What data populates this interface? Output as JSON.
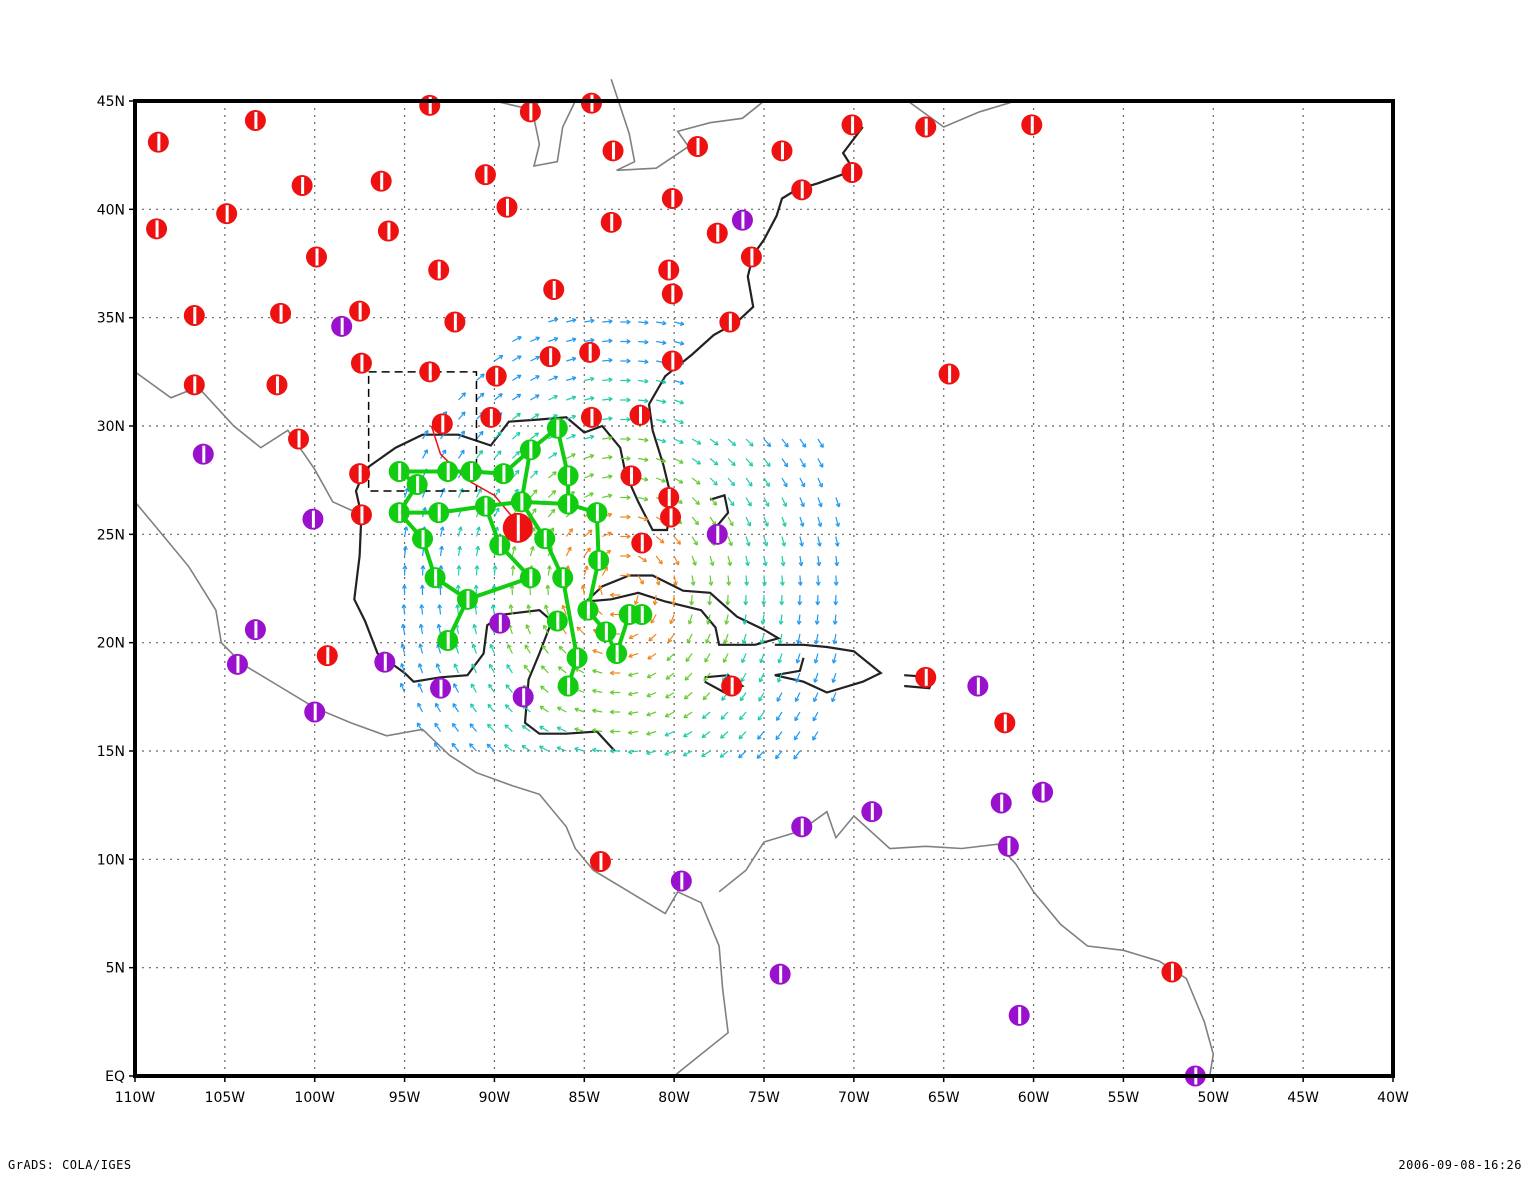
{
  "map": {
    "type": "station-map",
    "lon_range": [
      -110,
      -40
    ],
    "lat_range": [
      0,
      45
    ],
    "grid": "dotted",
    "x_tick_labels": [
      "110W",
      "105W",
      "100W",
      "95W",
      "90W",
      "85W",
      "80W",
      "75W",
      "70W",
      "65W",
      "60W",
      "55W",
      "50W",
      "45W",
      "40W"
    ],
    "y_tick_labels": [
      "EQ",
      "5N",
      "10N",
      "15N",
      "20N",
      "25N",
      "30N",
      "35N",
      "40N",
      "45N"
    ],
    "colors": {
      "station_red": "#ee1111",
      "station_purple": "#9911cc",
      "station_green": "#11cc11",
      "coast": "#808080",
      "coast_dark": "#222222",
      "frame": "#000000"
    },
    "stations_red": [
      [
        -108.7,
        43.1
      ],
      [
        -103.3,
        44.1
      ],
      [
        -93.6,
        44.8
      ],
      [
        -88.0,
        44.5
      ],
      [
        -84.6,
        44.9
      ],
      [
        -108.8,
        39.1
      ],
      [
        -104.9,
        39.8
      ],
      [
        -100.7,
        41.1
      ],
      [
        -96.3,
        41.3
      ],
      [
        -90.5,
        41.6
      ],
      [
        -89.3,
        40.1
      ],
      [
        -83.4,
        42.7
      ],
      [
        -78.7,
        42.9
      ],
      [
        -74.0,
        42.7
      ],
      [
        -70.1,
        43.9
      ],
      [
        -66.0,
        43.8
      ],
      [
        -60.1,
        43.9
      ],
      [
        -70.1,
        41.7
      ],
      [
        -72.9,
        40.9
      ],
      [
        -80.1,
        40.5
      ],
      [
        -83.5,
        39.4
      ],
      [
        -95.9,
        39.0
      ],
      [
        -99.9,
        37.8
      ],
      [
        -93.1,
        37.2
      ],
      [
        -86.7,
        36.3
      ],
      [
        -80.3,
        37.2
      ],
      [
        -80.1,
        36.1
      ],
      [
        -77.6,
        38.9
      ],
      [
        -75.7,
        37.8
      ],
      [
        -76.9,
        34.8
      ],
      [
        -106.7,
        35.1
      ],
      [
        -101.9,
        35.2
      ],
      [
        -97.5,
        35.3
      ],
      [
        -92.2,
        34.8
      ],
      [
        -86.9,
        33.2
      ],
      [
        -84.7,
        33.4
      ],
      [
        -80.1,
        33.0
      ],
      [
        -106.7,
        31.9
      ],
      [
        -102.1,
        31.9
      ],
      [
        -97.4,
        32.9
      ],
      [
        -93.6,
        32.5
      ],
      [
        -89.9,
        32.3
      ],
      [
        -92.9,
        30.1
      ],
      [
        -90.2,
        30.4
      ],
      [
        -84.6,
        30.4
      ],
      [
        -81.9,
        30.5
      ],
      [
        -100.9,
        29.4
      ],
      [
        -97.5,
        27.8
      ],
      [
        -97.4,
        25.9
      ],
      [
        -82.4,
        27.7
      ],
      [
        -80.3,
        26.7
      ],
      [
        -80.2,
        25.8
      ],
      [
        -81.8,
        24.6
      ],
      [
        -88.7,
        25.3
      ],
      [
        -64.7,
        32.4
      ],
      [
        -66.0,
        18.4
      ],
      [
        -61.6,
        16.3
      ],
      [
        -76.8,
        18.0
      ],
      [
        -99.3,
        19.4
      ],
      [
        -84.1,
        9.9
      ],
      [
        -52.3,
        4.8
      ]
    ],
    "stations_purple": [
      [
        -98.5,
        34.6
      ],
      [
        -76.2,
        39.5
      ],
      [
        -106.2,
        28.7
      ],
      [
        -100.1,
        25.7
      ],
      [
        -77.6,
        25.0
      ],
      [
        -103.3,
        20.6
      ],
      [
        -104.3,
        19.0
      ],
      [
        -96.1,
        19.1
      ],
      [
        -100.0,
        16.8
      ],
      [
        -93.0,
        17.9
      ],
      [
        -89.7,
        20.9
      ],
      [
        -88.4,
        17.5
      ],
      [
        -63.1,
        18.0
      ],
      [
        -59.5,
        13.1
      ],
      [
        -61.8,
        12.6
      ],
      [
        -69.0,
        12.2
      ],
      [
        -72.9,
        11.5
      ],
      [
        -61.4,
        10.6
      ],
      [
        -79.6,
        9.0
      ],
      [
        -74.1,
        4.7
      ],
      [
        -60.8,
        2.8
      ],
      [
        -51.0,
        0.0
      ]
    ],
    "stations_green": [
      [
        -95.3,
        27.9
      ],
      [
        -92.6,
        27.9
      ],
      [
        -91.3,
        27.9
      ],
      [
        -89.5,
        27.8
      ],
      [
        -88.0,
        28.9
      ],
      [
        -86.5,
        29.9
      ],
      [
        -85.9,
        27.7
      ],
      [
        -94.3,
        27.3
      ],
      [
        -95.3,
        26.0
      ],
      [
        -93.1,
        26.0
      ],
      [
        -90.5,
        26.3
      ],
      [
        -88.5,
        26.5
      ],
      [
        -85.9,
        26.4
      ],
      [
        -84.3,
        26.0
      ],
      [
        -94.0,
        24.8
      ],
      [
        -89.7,
        24.5
      ],
      [
        -87.2,
        24.8
      ],
      [
        -84.2,
        23.8
      ],
      [
        -93.3,
        23.0
      ],
      [
        -88.0,
        23.0
      ],
      [
        -86.2,
        23.0
      ],
      [
        -91.5,
        22.0
      ],
      [
        -84.8,
        21.5
      ],
      [
        -86.5,
        21.0
      ],
      [
        -92.6,
        20.1
      ],
      [
        -83.8,
        20.5
      ],
      [
        -83.2,
        19.5
      ],
      [
        -85.4,
        19.3
      ],
      [
        -85.9,
        18.0
      ],
      [
        -82.5,
        21.3
      ],
      [
        -81.8,
        21.3
      ]
    ]
  },
  "footer": {
    "left": "GrADS: COLA/IGES",
    "right": "2006-09-08-16:26"
  }
}
